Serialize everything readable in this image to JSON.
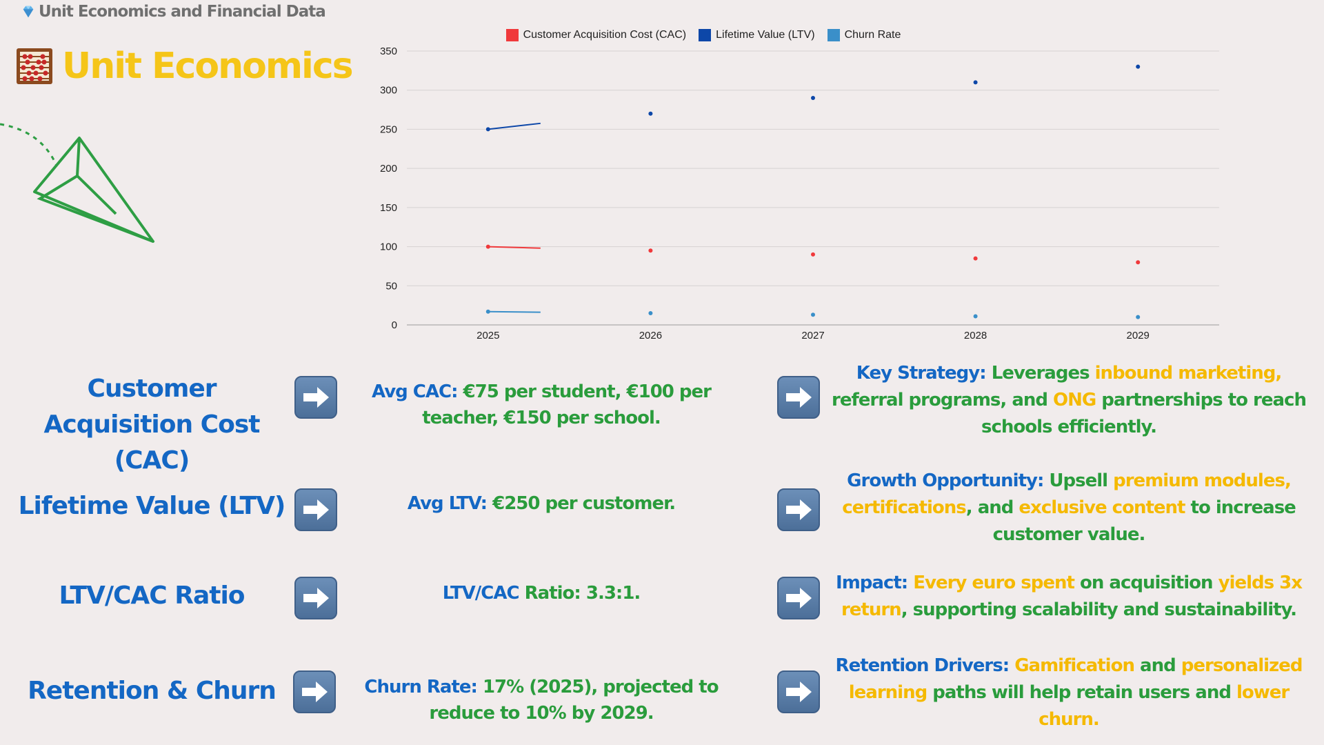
{
  "header": {
    "breadcrumb": "Unit Economics and Financial Data",
    "title": "Unit Economics"
  },
  "colors": {
    "cac": "#f0393b",
    "ltv": "#0d47a8",
    "churn": "#3a8fc9",
    "label_blue": "#1467c4",
    "green": "#2a9c3c",
    "yellow": "#f5b900"
  },
  "icons": {
    "breadcrumb": "gem-icon",
    "title": "abacus-icon",
    "arrow": "right-arrow-icon",
    "decoration": "paper-plane-icon"
  },
  "chart_data": {
    "type": "line",
    "x": [
      "2025",
      "2026",
      "2027",
      "2028",
      "2029"
    ],
    "series": [
      {
        "name": "Customer Acquisition Cost (CAC)",
        "color": "#f0393b",
        "values": [
          100,
          95,
          90,
          85,
          80
        ]
      },
      {
        "name": "Lifetime Value (LTV)",
        "color": "#0d47a8",
        "values": [
          250,
          270,
          290,
          310,
          330
        ]
      },
      {
        "name": "Churn Rate",
        "color": "#3a8fc9",
        "values": [
          17,
          15,
          13,
          11,
          10
        ]
      }
    ],
    "yticks": [
      0,
      50,
      100,
      150,
      200,
      250,
      300,
      350
    ],
    "ylim": [
      0,
      350
    ],
    "grid": true,
    "legend": "top-center"
  },
  "rows": [
    {
      "label": "Customer Acquisition Cost (CAC)",
      "mid": [
        {
          "text": "Avg CAC: ",
          "c": "blue"
        },
        {
          "text": "€75 per student, €100 per teacher, €150 per school.",
          "c": "green"
        }
      ],
      "right": [
        {
          "text": "Key Strategy: ",
          "c": "blue"
        },
        {
          "text": "Leverages ",
          "c": "green"
        },
        {
          "text": "inbound marketing,",
          "c": "yellow"
        },
        {
          "text": " referral programs, and ",
          "c": "green"
        },
        {
          "text": "ONG",
          "c": "yellow"
        },
        {
          "text": " partnerships to reach schools efficiently.",
          "c": "green"
        }
      ]
    },
    {
      "label": "Lifetime Value (LTV)",
      "mid": [
        {
          "text": "Avg LTV: ",
          "c": "blue"
        },
        {
          "text": "€250 per customer.",
          "c": "green"
        }
      ],
      "right": [
        {
          "text": "Growth Opportunity: ",
          "c": "blue"
        },
        {
          "text": "Upsell ",
          "c": "green"
        },
        {
          "text": "premium modules, certifications",
          "c": "yellow"
        },
        {
          "text": ", and ",
          "c": "green"
        },
        {
          "text": "exclusive content",
          "c": "yellow"
        },
        {
          "text": " to increase customer value.",
          "c": "green"
        }
      ]
    },
    {
      "label": "LTV/CAC Ratio",
      "mid": [
        {
          "text": "LTV/CAC ",
          "c": "blue"
        },
        {
          "text": "Ratio: 3.3:1.",
          "c": "green"
        }
      ],
      "right": [
        {
          "text": "Impact: ",
          "c": "blue"
        },
        {
          "text": "Every euro spent",
          "c": "yellow"
        },
        {
          "text": " on acquisition ",
          "c": "green"
        },
        {
          "text": "yields 3x return",
          "c": "yellow"
        },
        {
          "text": ", supporting scalability and sustainability.",
          "c": "green"
        }
      ]
    },
    {
      "label": "Retention & Churn",
      "mid": [
        {
          "text": "Churn Rate: ",
          "c": "blue"
        },
        {
          "text": "17% (2025), projected to reduce to 10% by 2029.",
          "c": "green"
        }
      ],
      "right": [
        {
          "text": "Retention Drivers: ",
          "c": "blue"
        },
        {
          "text": "Gamification",
          "c": "yellow"
        },
        {
          "text": " and ",
          "c": "green"
        },
        {
          "text": "personalized learning",
          "c": "yellow"
        },
        {
          "text": " paths will help retain users and ",
          "c": "green"
        },
        {
          "text": "lower churn.",
          "c": "yellow"
        }
      ]
    }
  ]
}
